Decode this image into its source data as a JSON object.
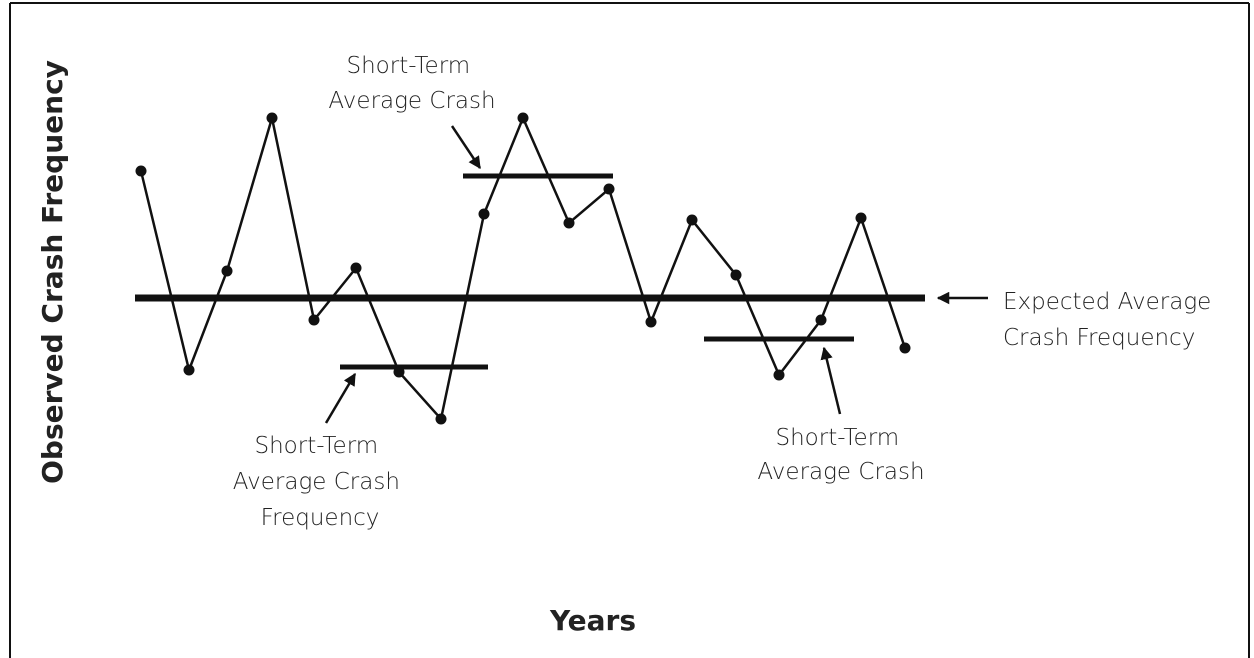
{
  "y_axis_label": "Observed Crash Frequency",
  "x_axis_label": "Years",
  "annotations": [
    {
      "lines": [
        "Short-Term",
        "Average Crash"
      ]
    },
    {
      "lines": [
        "Short-Term",
        "Average Crash",
        "Frequency"
      ]
    },
    {
      "lines": [
        "Short-Term",
        "Average Crash"
      ]
    },
    {
      "lines": [
        "Expected Average",
        "Crash Frequency"
      ]
    }
  ]
}
